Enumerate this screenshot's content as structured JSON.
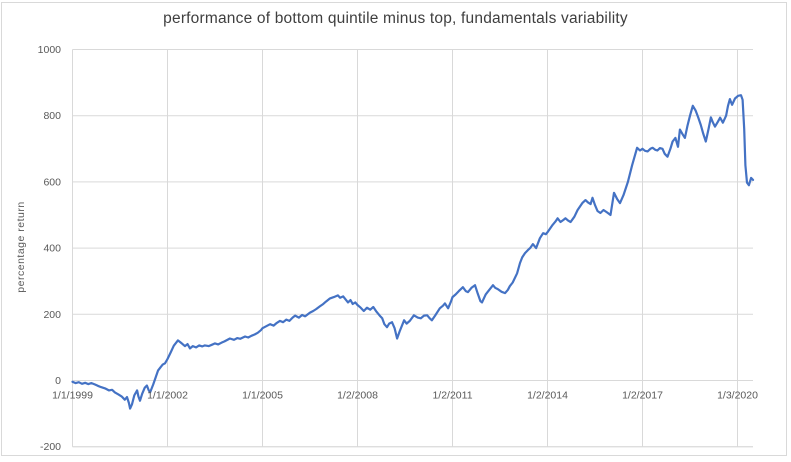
{
  "colors": {
    "series_line": "#4472C4",
    "gridline": "#D9D9D9",
    "axis_line": "#D9D9D9",
    "axis_text": "#595959",
    "title_text": "#3F3F3F",
    "background": "#FFFFFF",
    "outer_border": "#D9D9D9"
  },
  "chart_data": {
    "type": "line",
    "title": "performance of bottom quintile minus top, fundamentals variability",
    "xlabel": "",
    "ylabel": "percentage return",
    "ylim": [
      -200,
      1000
    ],
    "y_ticks": [
      1000,
      800,
      600,
      400,
      200,
      0,
      -200
    ],
    "x_ticks": [
      {
        "label": "1/1/1999",
        "year": 1999
      },
      {
        "label": "1/1/2002",
        "year": 2002
      },
      {
        "label": "1/1/2005",
        "year": 2005
      },
      {
        "label": "1/2/2008",
        "year": 2008
      },
      {
        "label": "1/2/2011",
        "year": 2011
      },
      {
        "label": "1/2/2014",
        "year": 2014
      },
      {
        "label": "1/2/2017",
        "year": 2017
      },
      {
        "label": "1/3/2020",
        "year": 2020
      }
    ],
    "xlim": [
      1999.0,
      2020.5
    ],
    "grid": true,
    "legend": false,
    "series": [
      {
        "name": "",
        "points": [
          [
            1999.0,
            -4
          ],
          [
            1999.1,
            -8
          ],
          [
            1999.2,
            -5
          ],
          [
            1999.3,
            -10
          ],
          [
            1999.4,
            -7
          ],
          [
            1999.5,
            -11
          ],
          [
            1999.6,
            -8
          ],
          [
            1999.71,
            -12
          ],
          [
            1999.8,
            -16
          ],
          [
            1999.9,
            -20
          ],
          [
            2000.03,
            -24
          ],
          [
            2000.15,
            -30
          ],
          [
            2000.25,
            -28
          ],
          [
            2000.34,
            -36
          ],
          [
            2000.45,
            -42
          ],
          [
            2000.55,
            -48
          ],
          [
            2000.65,
            -58
          ],
          [
            2000.72,
            -50
          ],
          [
            2000.78,
            -68
          ],
          [
            2000.82,
            -85
          ],
          [
            2000.88,
            -72
          ],
          [
            2000.95,
            -45
          ],
          [
            2001.04,
            -30
          ],
          [
            2001.08,
            -48
          ],
          [
            2001.13,
            -61
          ],
          [
            2001.2,
            -40
          ],
          [
            2001.28,
            -22
          ],
          [
            2001.35,
            -15
          ],
          [
            2001.4,
            -28
          ],
          [
            2001.45,
            -36
          ],
          [
            2001.55,
            -12
          ],
          [
            2001.62,
            8
          ],
          [
            2001.7,
            30
          ],
          [
            2001.78,
            40
          ],
          [
            2001.85,
            48
          ],
          [
            2001.92,
            52
          ],
          [
            2002.0,
            65
          ],
          [
            2002.1,
            85
          ],
          [
            2002.2,
            105
          ],
          [
            2002.33,
            121
          ],
          [
            2002.45,
            112
          ],
          [
            2002.55,
            104
          ],
          [
            2002.63,
            110
          ],
          [
            2002.71,
            97
          ],
          [
            2002.8,
            104
          ],
          [
            2002.9,
            100
          ],
          [
            2003.0,
            106
          ],
          [
            2003.1,
            103
          ],
          [
            2003.18,
            106
          ],
          [
            2003.3,
            104
          ],
          [
            2003.4,
            108
          ],
          [
            2003.5,
            112
          ],
          [
            2003.6,
            109
          ],
          [
            2003.7,
            114
          ],
          [
            2003.8,
            118
          ],
          [
            2003.97,
            127
          ],
          [
            2004.1,
            123
          ],
          [
            2004.2,
            128
          ],
          [
            2004.3,
            126
          ],
          [
            2004.45,
            133
          ],
          [
            2004.55,
            130
          ],
          [
            2004.65,
            135
          ],
          [
            2004.75,
            139
          ],
          [
            2004.85,
            144
          ],
          [
            2004.95,
            152
          ],
          [
            2005.0,
            158
          ],
          [
            2005.12,
            164
          ],
          [
            2005.24,
            170
          ],
          [
            2005.35,
            166
          ],
          [
            2005.45,
            174
          ],
          [
            2005.55,
            180
          ],
          [
            2005.65,
            176
          ],
          [
            2005.75,
            184
          ],
          [
            2005.85,
            180
          ],
          [
            2005.95,
            190
          ],
          [
            2006.03,
            196
          ],
          [
            2006.15,
            190
          ],
          [
            2006.25,
            198
          ],
          [
            2006.35,
            194
          ],
          [
            2006.5,
            205
          ],
          [
            2006.6,
            210
          ],
          [
            2006.7,
            216
          ],
          [
            2006.81,
            224
          ],
          [
            2006.9,
            230
          ],
          [
            2007.0,
            238
          ],
          [
            2007.13,
            248
          ],
          [
            2007.25,
            252
          ],
          [
            2007.38,
            257
          ],
          [
            2007.45,
            250
          ],
          [
            2007.55,
            254
          ],
          [
            2007.63,
            244
          ],
          [
            2007.7,
            236
          ],
          [
            2007.78,
            243
          ],
          [
            2007.85,
            231
          ],
          [
            2007.93,
            236
          ],
          [
            2008.0,
            228
          ],
          [
            2008.1,
            220
          ],
          [
            2008.2,
            210
          ],
          [
            2008.3,
            220
          ],
          [
            2008.4,
            214
          ],
          [
            2008.5,
            222
          ],
          [
            2008.6,
            208
          ],
          [
            2008.7,
            196
          ],
          [
            2008.78,
            188
          ],
          [
            2008.85,
            170
          ],
          [
            2008.93,
            161
          ],
          [
            2009.0,
            172
          ],
          [
            2009.09,
            176
          ],
          [
            2009.17,
            158
          ],
          [
            2009.25,
            127
          ],
          [
            2009.33,
            148
          ],
          [
            2009.47,
            182
          ],
          [
            2009.55,
            172
          ],
          [
            2009.65,
            180
          ],
          [
            2009.78,
            197
          ],
          [
            2009.9,
            190
          ],
          [
            2010.0,
            188
          ],
          [
            2010.1,
            196
          ],
          [
            2010.2,
            197
          ],
          [
            2010.28,
            188
          ],
          [
            2010.35,
            182
          ],
          [
            2010.45,
            196
          ],
          [
            2010.6,
            218
          ],
          [
            2010.7,
            226
          ],
          [
            2010.76,
            233
          ],
          [
            2010.86,
            218
          ],
          [
            2010.95,
            238
          ],
          [
            2011.0,
            252
          ],
          [
            2011.1,
            260
          ],
          [
            2011.2,
            270
          ],
          [
            2011.33,
            282
          ],
          [
            2011.42,
            270
          ],
          [
            2011.49,
            267
          ],
          [
            2011.6,
            280
          ],
          [
            2011.71,
            288
          ],
          [
            2011.8,
            262
          ],
          [
            2011.88,
            240
          ],
          [
            2011.93,
            236
          ],
          [
            2012.05,
            260
          ],
          [
            2012.18,
            276
          ],
          [
            2012.28,
            288
          ],
          [
            2012.35,
            280
          ],
          [
            2012.43,
            276
          ],
          [
            2012.55,
            268
          ],
          [
            2012.66,
            264
          ],
          [
            2012.75,
            274
          ],
          [
            2012.81,
            285
          ],
          [
            2012.9,
            296
          ],
          [
            2013.04,
            324
          ],
          [
            2013.13,
            355
          ],
          [
            2013.2,
            372
          ],
          [
            2013.29,
            385
          ],
          [
            2013.38,
            394
          ],
          [
            2013.45,
            400
          ],
          [
            2013.54,
            412
          ],
          [
            2013.64,
            400
          ],
          [
            2013.76,
            430
          ],
          [
            2013.86,
            445
          ],
          [
            2013.95,
            442
          ],
          [
            2014.0,
            448
          ],
          [
            2014.16,
            470
          ],
          [
            2014.25,
            480
          ],
          [
            2014.32,
            490
          ],
          [
            2014.41,
            479
          ],
          [
            2014.5,
            485
          ],
          [
            2014.57,
            490
          ],
          [
            2014.65,
            483
          ],
          [
            2014.73,
            479
          ],
          [
            2014.85,
            495
          ],
          [
            2014.95,
            515
          ],
          [
            2015.1,
            536
          ],
          [
            2015.2,
            545
          ],
          [
            2015.28,
            538
          ],
          [
            2015.36,
            533
          ],
          [
            2015.42,
            552
          ],
          [
            2015.5,
            530
          ],
          [
            2015.58,
            512
          ],
          [
            2015.67,
            506
          ],
          [
            2015.77,
            515
          ],
          [
            2015.88,
            508
          ],
          [
            2015.99,
            500
          ],
          [
            2016.1,
            567
          ],
          [
            2016.2,
            548
          ],
          [
            2016.29,
            536
          ],
          [
            2016.4,
            560
          ],
          [
            2016.54,
            600
          ],
          [
            2016.67,
            650
          ],
          [
            2016.83,
            703
          ],
          [
            2016.92,
            695
          ],
          [
            2017.0,
            700
          ],
          [
            2017.08,
            694
          ],
          [
            2017.16,
            692
          ],
          [
            2017.25,
            700
          ],
          [
            2017.32,
            703
          ],
          [
            2017.4,
            697
          ],
          [
            2017.47,
            695
          ],
          [
            2017.55,
            702
          ],
          [
            2017.63,
            700
          ],
          [
            2017.7,
            685
          ],
          [
            2017.79,
            676
          ],
          [
            2017.88,
            700
          ],
          [
            2017.95,
            722
          ],
          [
            2018.04,
            733
          ],
          [
            2018.12,
            706
          ],
          [
            2018.18,
            758
          ],
          [
            2018.26,
            745
          ],
          [
            2018.34,
            733
          ],
          [
            2018.42,
            770
          ],
          [
            2018.5,
            800
          ],
          [
            2018.59,
            830
          ],
          [
            2018.68,
            815
          ],
          [
            2018.76,
            795
          ],
          [
            2018.84,
            772
          ],
          [
            2018.92,
            745
          ],
          [
            2019.0,
            722
          ],
          [
            2019.08,
            758
          ],
          [
            2019.16,
            795
          ],
          [
            2019.22,
            780
          ],
          [
            2019.29,
            767
          ],
          [
            2019.38,
            782
          ],
          [
            2019.45,
            794
          ],
          [
            2019.54,
            779
          ],
          [
            2019.64,
            800
          ],
          [
            2019.7,
            830
          ],
          [
            2019.76,
            850
          ],
          [
            2019.83,
            833
          ],
          [
            2019.92,
            852
          ],
          [
            2020.02,
            860
          ],
          [
            2020.11,
            862
          ],
          [
            2020.16,
            848
          ],
          [
            2020.21,
            760
          ],
          [
            2020.25,
            650
          ],
          [
            2020.3,
            598
          ],
          [
            2020.36,
            590
          ],
          [
            2020.43,
            612
          ],
          [
            2020.49,
            606
          ]
        ]
      }
    ]
  }
}
